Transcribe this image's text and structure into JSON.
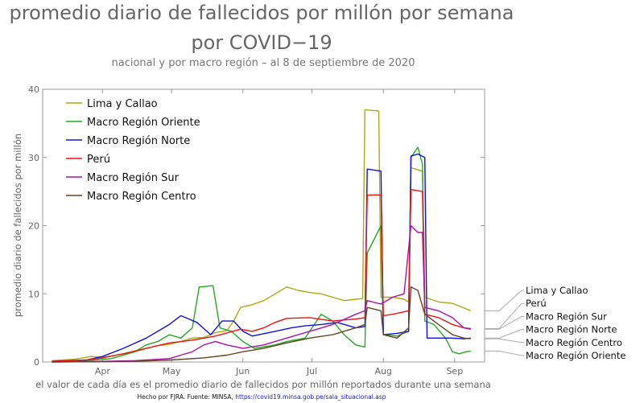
{
  "chart_data": {
    "type": "line",
    "title_line1": "promedio diario de fallecidos por millón por semana",
    "title_line2": "por COVID−19",
    "subtitle": "nacional y por macro región – al 8 de septiembre de 2020",
    "ylabel": "promedio diario de fallecidos por millón",
    "xlabel": "el valor de cada día es el promedio diario de fallecidos por millón reportados durante una semana",
    "credit_prefix": "Hecho por FJRA. Fuente: MINSA, ",
    "credit_link": "https://covid19.minsa.gob.pe/sala_situacional.asp",
    "ylim": [
      0,
      40
    ],
    "yticks": [
      0,
      10,
      20,
      30,
      40
    ],
    "xlim": [
      "2020-03-06",
      "2020-09-14"
    ],
    "xticks": [
      {
        "date": "2020-04-01",
        "label": "Apr"
      },
      {
        "date": "2020-05-01",
        "label": "May"
      },
      {
        "date": "2020-06-01",
        "label": "Jun"
      },
      {
        "date": "2020-07-01",
        "label": "Jul"
      },
      {
        "date": "2020-08-01",
        "label": "Aug"
      },
      {
        "date": "2020-09-01",
        "label": "Sep"
      }
    ],
    "grid": false,
    "legend_position": "top-left",
    "series": [
      {
        "name": "Lima y Callao",
        "color": "#aaaa11",
        "end_label": "Lima y Callao",
        "points": [
          [
            "2020-03-10",
            0.2
          ],
          [
            "2020-03-20",
            0.4
          ],
          [
            "2020-03-27",
            0.8
          ],
          [
            "2020-04-01",
            0.7
          ],
          [
            "2020-04-05",
            0.9
          ],
          [
            "2020-04-10",
            1.2
          ],
          [
            "2020-04-15",
            1.5
          ],
          [
            "2020-04-20",
            2.0
          ],
          [
            "2020-04-25",
            2.4
          ],
          [
            "2020-04-30",
            2.6
          ],
          [
            "2020-05-05",
            3.0
          ],
          [
            "2020-05-10",
            3.5
          ],
          [
            "2020-05-15",
            3.6
          ],
          [
            "2020-05-20",
            4.3
          ],
          [
            "2020-05-25",
            4.6
          ],
          [
            "2020-05-28",
            6.0
          ],
          [
            "2020-05-31",
            8.0
          ],
          [
            "2020-06-05",
            8.4
          ],
          [
            "2020-06-10",
            9.0
          ],
          [
            "2020-06-15",
            10.0
          ],
          [
            "2020-06-20",
            11.0
          ],
          [
            "2020-06-25",
            10.5
          ],
          [
            "2020-06-30",
            10.2
          ],
          [
            "2020-07-05",
            10.0
          ],
          [
            "2020-07-10",
            9.5
          ],
          [
            "2020-07-15",
            9.0
          ],
          [
            "2020-07-20",
            9.2
          ],
          [
            "2020-07-23",
            9.3
          ],
          [
            "2020-07-24",
            37.0
          ],
          [
            "2020-07-30",
            36.8
          ],
          [
            "2020-07-31",
            9.5
          ],
          [
            "2020-08-05",
            9.5
          ],
          [
            "2020-08-10",
            9.2
          ],
          [
            "2020-08-12",
            8.8
          ],
          [
            "2020-08-13",
            28.5
          ],
          [
            "2020-08-18",
            28.0
          ],
          [
            "2020-08-19",
            9.5
          ],
          [
            "2020-08-25",
            8.8
          ],
          [
            "2020-08-31",
            8.6
          ],
          [
            "2020-09-03",
            8.2
          ],
          [
            "2020-09-08",
            7.5
          ]
        ]
      },
      {
        "name": "Macro Región Oriente",
        "color": "#22aa22",
        "end_label": "Macro Región Oriente",
        "points": [
          [
            "2020-03-10",
            0.1
          ],
          [
            "2020-03-25",
            0.2
          ],
          [
            "2020-04-05",
            0.5
          ],
          [
            "2020-04-15",
            1.5
          ],
          [
            "2020-04-20",
            2.5
          ],
          [
            "2020-04-25",
            3.0
          ],
          [
            "2020-04-30",
            4.0
          ],
          [
            "2020-05-05",
            3.5
          ],
          [
            "2020-05-10",
            5.0
          ],
          [
            "2020-05-13",
            11.0
          ],
          [
            "2020-05-19",
            11.2
          ],
          [
            "2020-05-22",
            5.0
          ],
          [
            "2020-05-27",
            4.5
          ],
          [
            "2020-06-01",
            3.0
          ],
          [
            "2020-06-06",
            2.0
          ],
          [
            "2020-06-15",
            2.5
          ],
          [
            "2020-06-20",
            3.0
          ],
          [
            "2020-06-28",
            3.5
          ],
          [
            "2020-07-01",
            5.0
          ],
          [
            "2020-07-05",
            7.0
          ],
          [
            "2020-07-10",
            6.0
          ],
          [
            "2020-07-15",
            4.0
          ],
          [
            "2020-07-20",
            2.5
          ],
          [
            "2020-07-24",
            2.2
          ],
          [
            "2020-07-25",
            16.0
          ],
          [
            "2020-07-31",
            20.0
          ],
          [
            "2020-08-01",
            4.0
          ],
          [
            "2020-08-07",
            3.8
          ],
          [
            "2020-08-12",
            4.5
          ],
          [
            "2020-08-13",
            30.0
          ],
          [
            "2020-08-16",
            31.5
          ],
          [
            "2020-08-18",
            29.0
          ],
          [
            "2020-08-19",
            6.0
          ],
          [
            "2020-08-23",
            5.5
          ],
          [
            "2020-08-28",
            3.5
          ],
          [
            "2020-08-31",
            1.5
          ],
          [
            "2020-09-03",
            1.2
          ],
          [
            "2020-09-06",
            1.5
          ],
          [
            "2020-09-08",
            1.6
          ]
        ]
      },
      {
        "name": "Macro Región Norte",
        "color": "#1111dd",
        "end_label": "Macro Región Norte",
        "points": [
          [
            "2020-03-10",
            0.1
          ],
          [
            "2020-03-25",
            0.3
          ],
          [
            "2020-04-01",
            0.8
          ],
          [
            "2020-04-10",
            2.0
          ],
          [
            "2020-04-20",
            3.5
          ],
          [
            "2020-04-25",
            4.5
          ],
          [
            "2020-04-30",
            5.5
          ],
          [
            "2020-05-05",
            6.8
          ],
          [
            "2020-05-12",
            5.8
          ],
          [
            "2020-05-18",
            4.0
          ],
          [
            "2020-05-23",
            6.0
          ],
          [
            "2020-05-28",
            6.0
          ],
          [
            "2020-06-01",
            4.5
          ],
          [
            "2020-06-05",
            3.8
          ],
          [
            "2020-06-15",
            4.5
          ],
          [
            "2020-06-22",
            5.0
          ],
          [
            "2020-06-28",
            5.3
          ],
          [
            "2020-07-05",
            5.5
          ],
          [
            "2020-07-12",
            5.8
          ],
          [
            "2020-07-20",
            5.0
          ],
          [
            "2020-07-24",
            5.2
          ],
          [
            "2020-07-25",
            28.3
          ],
          [
            "2020-07-31",
            28.0
          ],
          [
            "2020-08-01",
            4.0
          ],
          [
            "2020-08-07",
            4.2
          ],
          [
            "2020-08-12",
            4.5
          ],
          [
            "2020-08-13",
            30.2
          ],
          [
            "2020-08-16",
            30.5
          ],
          [
            "2020-08-19",
            30.0
          ],
          [
            "2020-08-20",
            3.5
          ],
          [
            "2020-08-25",
            3.5
          ],
          [
            "2020-08-31",
            3.5
          ],
          [
            "2020-09-05",
            3.4
          ],
          [
            "2020-09-08",
            3.5
          ]
        ]
      },
      {
        "name": "Perú",
        "color": "#ee1111",
        "end_label": "Perú",
        "points": [
          [
            "2020-03-10",
            0.1
          ],
          [
            "2020-03-25",
            0.3
          ],
          [
            "2020-04-01",
            0.6
          ],
          [
            "2020-04-10",
            1.2
          ],
          [
            "2020-04-20",
            2.0
          ],
          [
            "2020-04-30",
            2.8
          ],
          [
            "2020-05-10",
            3.2
          ],
          [
            "2020-05-20",
            3.8
          ],
          [
            "2020-05-31",
            4.8
          ],
          [
            "2020-06-05",
            4.5
          ],
          [
            "2020-06-10",
            5.0
          ],
          [
            "2020-06-15",
            5.8
          ],
          [
            "2020-06-20",
            6.4
          ],
          [
            "2020-06-30",
            6.5
          ],
          [
            "2020-07-10",
            6.0
          ],
          [
            "2020-07-20",
            6.3
          ],
          [
            "2020-07-24",
            6.5
          ],
          [
            "2020-07-25",
            24.5
          ],
          [
            "2020-07-31",
            24.5
          ],
          [
            "2020-08-01",
            6.8
          ],
          [
            "2020-08-05",
            7.0
          ],
          [
            "2020-08-12",
            7.5
          ],
          [
            "2020-08-13",
            25.3
          ],
          [
            "2020-08-18",
            25.0
          ],
          [
            "2020-08-19",
            7.0
          ],
          [
            "2020-08-25",
            6.5
          ],
          [
            "2020-08-31",
            5.5
          ],
          [
            "2020-09-05",
            5.0
          ],
          [
            "2020-09-08",
            4.9
          ]
        ]
      },
      {
        "name": "Macro Región Sur",
        "color": "#aa11aa",
        "end_label": "Macro Región Sur",
        "points": [
          [
            "2020-03-10",
            0.0
          ],
          [
            "2020-04-01",
            0.1
          ],
          [
            "2020-04-15",
            0.2
          ],
          [
            "2020-04-30",
            0.5
          ],
          [
            "2020-05-05",
            1.0
          ],
          [
            "2020-05-10",
            1.5
          ],
          [
            "2020-05-15",
            2.5
          ],
          [
            "2020-05-20",
            3.0
          ],
          [
            "2020-05-25",
            2.5
          ],
          [
            "2020-06-01",
            2.0
          ],
          [
            "2020-06-10",
            2.5
          ],
          [
            "2020-06-20",
            3.5
          ],
          [
            "2020-06-30",
            4.5
          ],
          [
            "2020-07-10",
            5.5
          ],
          [
            "2020-07-20",
            7.0
          ],
          [
            "2020-07-24",
            7.5
          ],
          [
            "2020-07-25",
            9.0
          ],
          [
            "2020-07-31",
            8.5
          ],
          [
            "2020-08-05",
            9.5
          ],
          [
            "2020-08-10",
            10.0
          ],
          [
            "2020-08-13",
            20.0
          ],
          [
            "2020-08-16",
            19.0
          ],
          [
            "2020-08-18",
            19.0
          ],
          [
            "2020-08-19",
            8.0
          ],
          [
            "2020-08-25",
            7.5
          ],
          [
            "2020-08-31",
            6.5
          ],
          [
            "2020-09-05",
            5.0
          ],
          [
            "2020-09-08",
            4.8
          ]
        ]
      },
      {
        "name": "Macro Región Centro",
        "color": "#664422",
        "end_label": "Macro Región Centro",
        "points": [
          [
            "2020-03-10",
            0.0
          ],
          [
            "2020-04-15",
            0.1
          ],
          [
            "2020-05-01",
            0.3
          ],
          [
            "2020-05-15",
            0.6
          ],
          [
            "2020-05-25",
            1.0
          ],
          [
            "2020-06-01",
            1.5
          ],
          [
            "2020-06-10",
            2.0
          ],
          [
            "2020-06-20",
            2.8
          ],
          [
            "2020-06-30",
            3.5
          ],
          [
            "2020-07-10",
            4.0
          ],
          [
            "2020-07-20",
            5.0
          ],
          [
            "2020-07-24",
            5.5
          ],
          [
            "2020-07-25",
            8.0
          ],
          [
            "2020-07-31",
            7.5
          ],
          [
            "2020-08-01",
            4.0
          ],
          [
            "2020-08-07",
            3.5
          ],
          [
            "2020-08-12",
            5.0
          ],
          [
            "2020-08-13",
            11.0
          ],
          [
            "2020-08-16",
            10.5
          ],
          [
            "2020-08-19",
            7.0
          ],
          [
            "2020-08-25",
            5.5
          ],
          [
            "2020-08-31",
            4.0
          ],
          [
            "2020-09-05",
            3.5
          ],
          [
            "2020-09-08",
            3.4
          ]
        ]
      }
    ]
  }
}
